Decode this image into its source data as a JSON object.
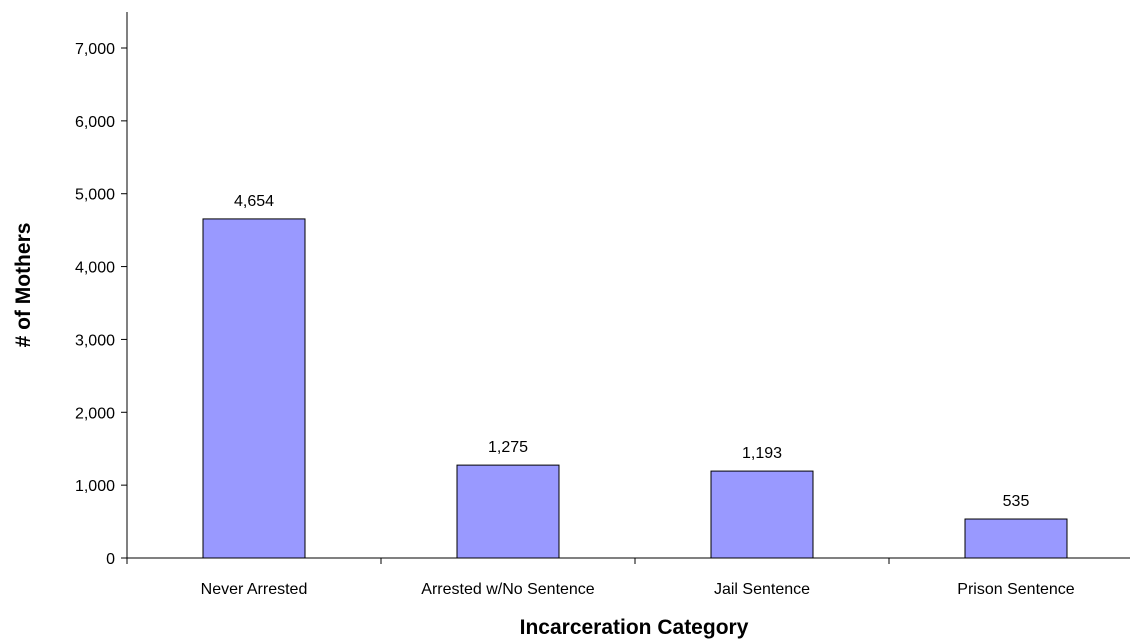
{
  "chart_data": {
    "type": "bar",
    "title": "",
    "xlabel": "Incarceration Category",
    "ylabel": "# of Mothers",
    "categories": [
      "Never Arrested",
      "Arrested w/No Sentence",
      "Jail Sentence",
      "Prison Sentence"
    ],
    "values": [
      4654,
      1275,
      1193,
      535
    ],
    "data_labels": [
      "4,654",
      "1,275",
      "1,193",
      "535"
    ],
    "ylim": [
      0,
      7000
    ],
    "yticks": [
      0,
      1000,
      2000,
      3000,
      4000,
      5000,
      6000,
      7000
    ],
    "ytick_labels": [
      "0",
      "1,000",
      "2,000",
      "3,000",
      "4,000",
      "5,000",
      "6,000",
      "7,000"
    ],
    "grid": false,
    "legend": "none",
    "colors": {
      "bar_fill": "#9999ff",
      "bar_stroke": "#000000",
      "axis": "#000000"
    }
  }
}
